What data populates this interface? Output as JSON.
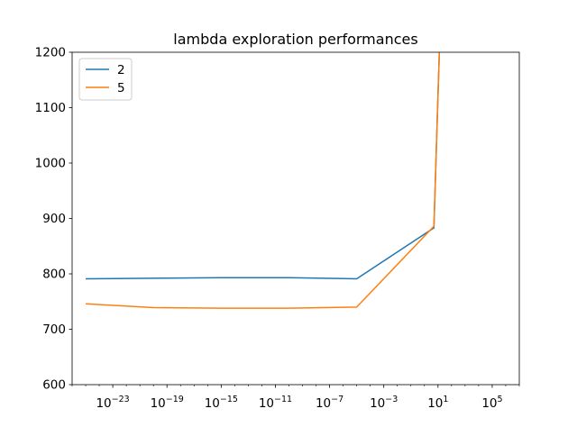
{
  "chart_data": {
    "type": "line",
    "title": "lambda exploration performances",
    "xlabel": "",
    "ylabel": "",
    "x_scale": "log10",
    "xlim": [
      1e-26,
      10000000.0
    ],
    "ylim": [
      600,
      1200
    ],
    "grid": false,
    "legend_position": "top-left",
    "x_ticks": [
      {
        "value": 1e-23,
        "base": "10",
        "exp": "−23"
      },
      {
        "value": 1e-19,
        "base": "10",
        "exp": "−19"
      },
      {
        "value": 1e-15,
        "base": "10",
        "exp": "−15"
      },
      {
        "value": 1e-11,
        "base": "10",
        "exp": "−11"
      },
      {
        "value": 1e-07,
        "base": "10",
        "exp": "−7"
      },
      {
        "value": 0.001,
        "base": "10",
        "exp": "−3"
      },
      {
        "value": 10,
        "base": "10",
        "exp": "1"
      },
      {
        "value": 100000,
        "base": "10",
        "exp": "5"
      }
    ],
    "y_ticks": [
      "600",
      "700",
      "800",
      "900",
      "1000",
      "1100",
      "1200"
    ],
    "x": [
      1e-25,
      1e-20,
      1e-15,
      1e-10,
      1e-05,
      5,
      30
    ],
    "series": [
      {
        "name": "2",
        "color": "#1f77b4",
        "values": [
          791,
          792,
          793,
          793,
          791,
          883,
          1500
        ]
      },
      {
        "name": "5",
        "color": "#ff7f0e",
        "values": [
          746,
          739,
          738,
          738,
          740,
          886,
          1500
        ]
      }
    ]
  }
}
